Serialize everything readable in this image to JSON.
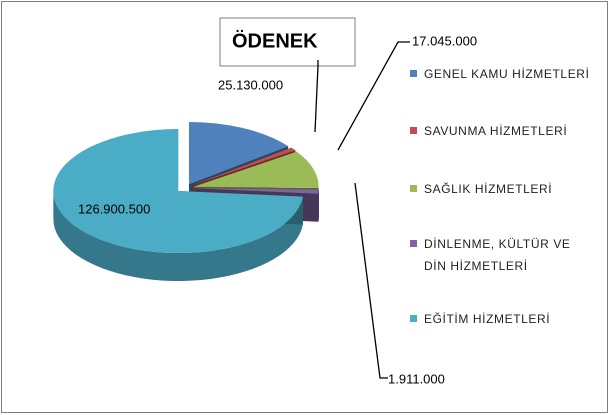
{
  "chart_data": {
    "type": "pie3d",
    "title": "ÖDENEK",
    "categories": [
      "GENEL KAMU HİZMETLERİ",
      "SAVUNMA HİZMETLERİ",
      "SAĞLIK HİZMETLERİ",
      "DİNLENME, KÜLTÜR VE\nDİN HİZMETLERİ",
      "EĞİTİM HİZMETLERİ"
    ],
    "values": [
      25130000,
      1500000,
      17045000,
      1911000,
      126900500
    ],
    "value_labels": [
      "25.130.000",
      null,
      "17.045.000",
      "1.911.000",
      "126.900.500"
    ],
    "colors": [
      "#4f81bd",
      "#c0504d",
      "#9bbb59",
      "#8064a2",
      "#4bacc6"
    ]
  }
}
